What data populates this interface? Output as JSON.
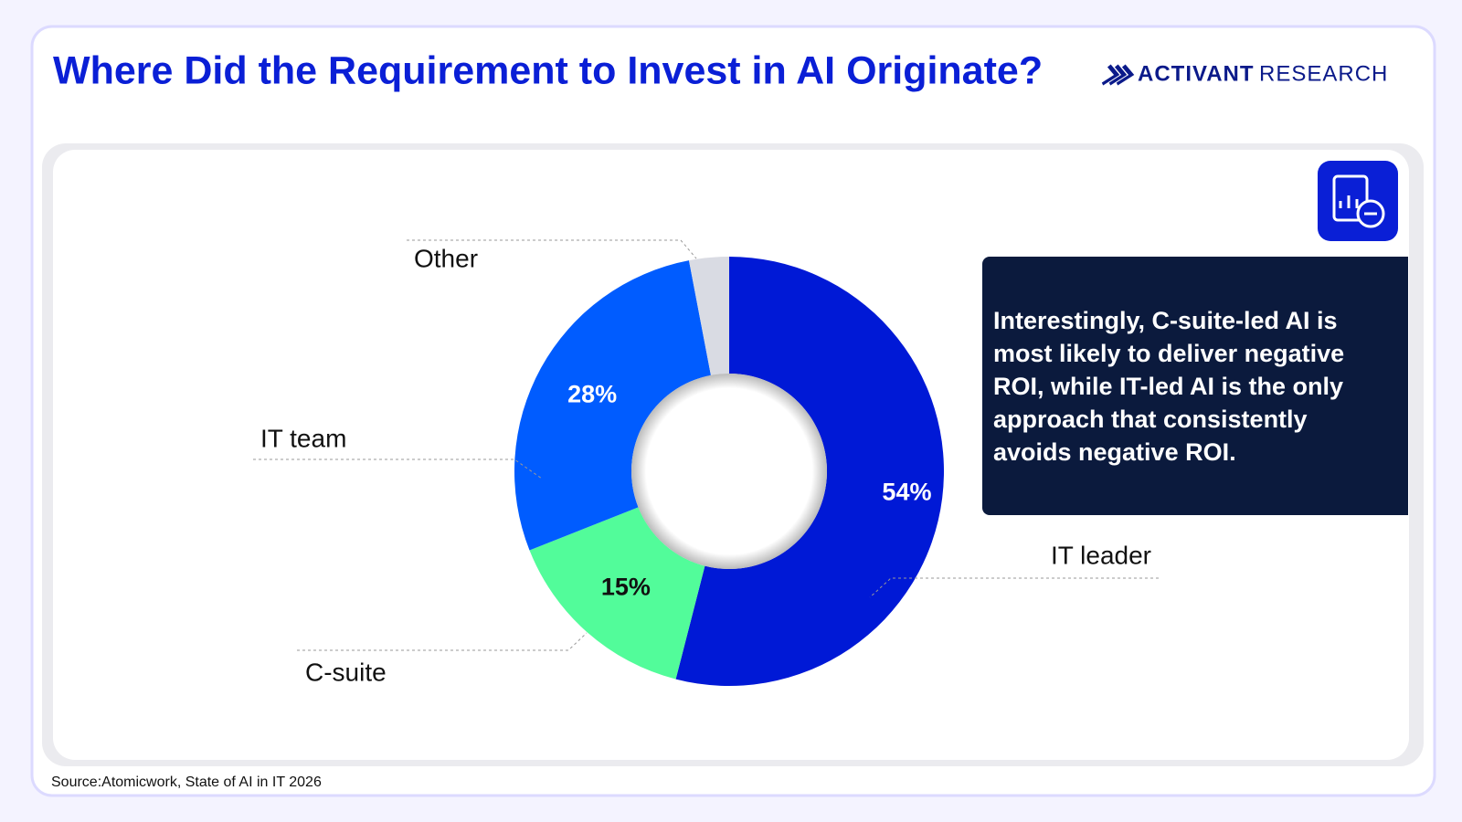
{
  "chart_data": {
    "type": "donut",
    "title": "Where Did the Requirement to Invest in AI Originate?",
    "brand_name": "ACTIVANT",
    "brand_sub": "RESEARCH",
    "categories": [
      "IT leader",
      "C-suite",
      "IT team",
      "Other"
    ],
    "values": [
      54,
      15,
      28,
      3
    ],
    "value_labels": [
      "54%",
      "15%",
      "28%",
      null
    ],
    "colors": [
      "#0019d6",
      "#52fc9a",
      "#005cff",
      "#d9dbe3"
    ],
    "annotation": "Interestingly, C-suite-led AI is most likely to deliver negative ROI, while IT-led AI is the only approach that consistently avoids negative ROI.",
    "source": "Source:Atomicwork, State of AI in IT 2026"
  }
}
